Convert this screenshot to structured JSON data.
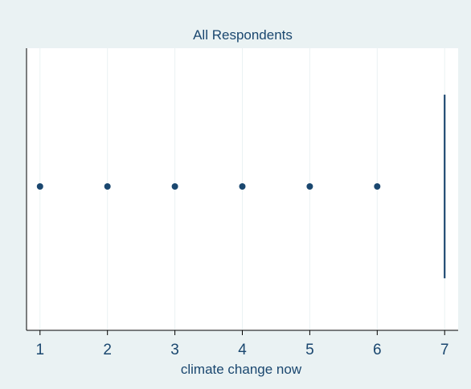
{
  "chart_data": {
    "type": "box",
    "title": "All Respondents",
    "xlabel": "climate change now",
    "ylabel": "",
    "xlim": [
      0.8,
      7.2
    ],
    "xticks": [
      1,
      2,
      3,
      4,
      5,
      6,
      7
    ],
    "grid": true,
    "legend": "none",
    "box": {
      "q1": 7,
      "median": 7,
      "q3": 7,
      "whisker_low": 7,
      "whisker_high": 7
    },
    "outliers": [
      1,
      2,
      3,
      4,
      5,
      6
    ],
    "colors": {
      "outer_background": "#eaf2f3",
      "plot_background": "#ffffff",
      "grid": "#eaf2f3",
      "marker": "#1a476f",
      "axis": "#000000",
      "text": "#1a476f"
    }
  }
}
